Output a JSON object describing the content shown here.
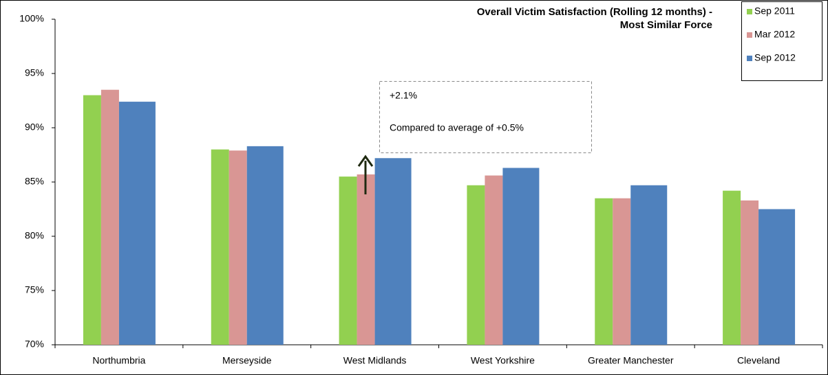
{
  "chart_data": {
    "type": "bar",
    "title": "Overall Victim Satisfaction (Rolling 12 months) -",
    "subtitle": "Most Similar Force",
    "categories": [
      "Northumbria",
      "Merseyside",
      "West Midlands",
      "West Yorkshire",
      "Greater Manchester",
      "Cleveland"
    ],
    "series": [
      {
        "name": "Sep 2011",
        "color": "#92d050",
        "values": [
          93.0,
          88.0,
          85.5,
          84.7,
          83.5,
          84.2
        ]
      },
      {
        "name": "Mar 2012",
        "color": "#d99694",
        "values": [
          93.5,
          87.9,
          85.7,
          85.6,
          83.5,
          83.3
        ]
      },
      {
        "name": "Sep 2012",
        "color": "#4f81bd",
        "values": [
          92.4,
          88.3,
          87.2,
          86.3,
          84.7,
          82.5
        ]
      }
    ],
    "ylim": [
      70,
      100
    ],
    "yticks": [
      {
        "value": 70,
        "label": "70%"
      },
      {
        "value": 75,
        "label": "75%"
      },
      {
        "value": 80,
        "label": "80%"
      },
      {
        "value": 85,
        "label": "85%"
      },
      {
        "value": 90,
        "label": "90%"
      },
      {
        "value": 95,
        "label": "95%"
      },
      {
        "value": 100,
        "label": "100%"
      }
    ],
    "annotations": [
      "+2.1%",
      "Compared to average of +0.5%"
    ],
    "legend": "top-right"
  }
}
